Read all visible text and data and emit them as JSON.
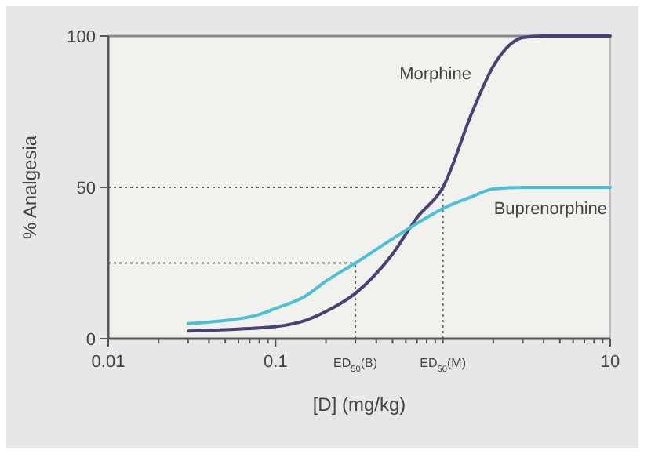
{
  "chart_data": {
    "type": "line",
    "xlabel": "[D] (mg/kg)",
    "ylabel": "% Analgesia",
    "log": "x",
    "xlim": [
      0.01,
      10
    ],
    "ylim": [
      0,
      100
    ],
    "xticks": [
      0.01,
      {
        "value": 0.02,
        "label": null
      },
      {
        "value": 0.03,
        "label": null
      },
      {
        "value": 0.04,
        "label": null
      },
      {
        "value": 0.05,
        "label": null
      },
      {
        "value": 0.06,
        "label": null
      },
      {
        "value": 0.07,
        "label": null
      },
      {
        "value": 0.08,
        "label": null
      },
      {
        "value": 0.09,
        "label": null
      },
      0.1,
      {
        "value": 0.2,
        "label": null
      },
      {
        "value": 0.3,
        "label": null
      },
      {
        "value": 0.4,
        "label": null
      },
      {
        "value": 0.5,
        "label": null
      },
      {
        "value": 0.6,
        "label": null
      },
      {
        "value": 0.7,
        "label": null
      },
      {
        "value": 0.8,
        "label": null
      },
      {
        "value": 0.9,
        "label": null
      },
      {
        "value": 1,
        "label": null
      },
      {
        "value": 2,
        "label": null
      },
      {
        "value": 3,
        "label": null
      },
      {
        "value": 4,
        "label": null
      },
      {
        "value": 5,
        "label": null
      },
      {
        "value": 6,
        "label": null
      },
      {
        "value": 7,
        "label": null
      },
      {
        "value": 8,
        "label": null
      },
      {
        "value": 9,
        "label": null
      },
      10
    ],
    "yticks": [
      0,
      50,
      100
    ],
    "grid": false,
    "annotations": [
      {
        "text": "ED$_{50}$(B)",
        "x": 0.3,
        "y": 0
      },
      {
        "text": "ED$_{50}$(M)",
        "x": 1,
        "y": 0
      }
    ],
    "marker": "none",
    "line_style": "solid",
    "series": [
      {
        "name": "Morphine",
        "color": "#4b3f78",
        "x": [
          0.03,
          0.05,
          0.1,
          0.15,
          0.2,
          0.3,
          0.5,
          0.7,
          1,
          1.5,
          2,
          2.5,
          3,
          4,
          10
        ],
        "values": [
          2.5,
          3,
          4,
          6,
          9,
          15,
          28,
          40,
          50,
          75,
          90,
          97,
          99.5,
          100,
          100
        ]
      },
      {
        "name": "Buprenorphine",
        "color": "#4cc0d6",
        "x": [
          0.03,
          0.05,
          0.08,
          0.1,
          0.15,
          0.2,
          0.3,
          0.5,
          0.8,
          1,
          1.5,
          2,
          3,
          10
        ],
        "values": [
          5,
          6,
          8,
          10,
          14,
          19,
          25,
          33,
          40,
          43,
          47,
          49.5,
          50,
          50
        ]
      }
    ],
    "ref_lines": [
      {
        "axis": "y",
        "value": 50,
        "color": "#666666",
        "line_style": "dotted"
      },
      {
        "axis": "y",
        "value": 25,
        "color": "#666666",
        "line_style": "dotted"
      },
      {
        "axis": "x",
        "value": 1,
        "color": "#666666",
        "line_style": "dotted"
      },
      {
        "axis": "x",
        "value": 0.3,
        "color": "#666666",
        "line_style": "dotted"
      }
    ]
  }
}
